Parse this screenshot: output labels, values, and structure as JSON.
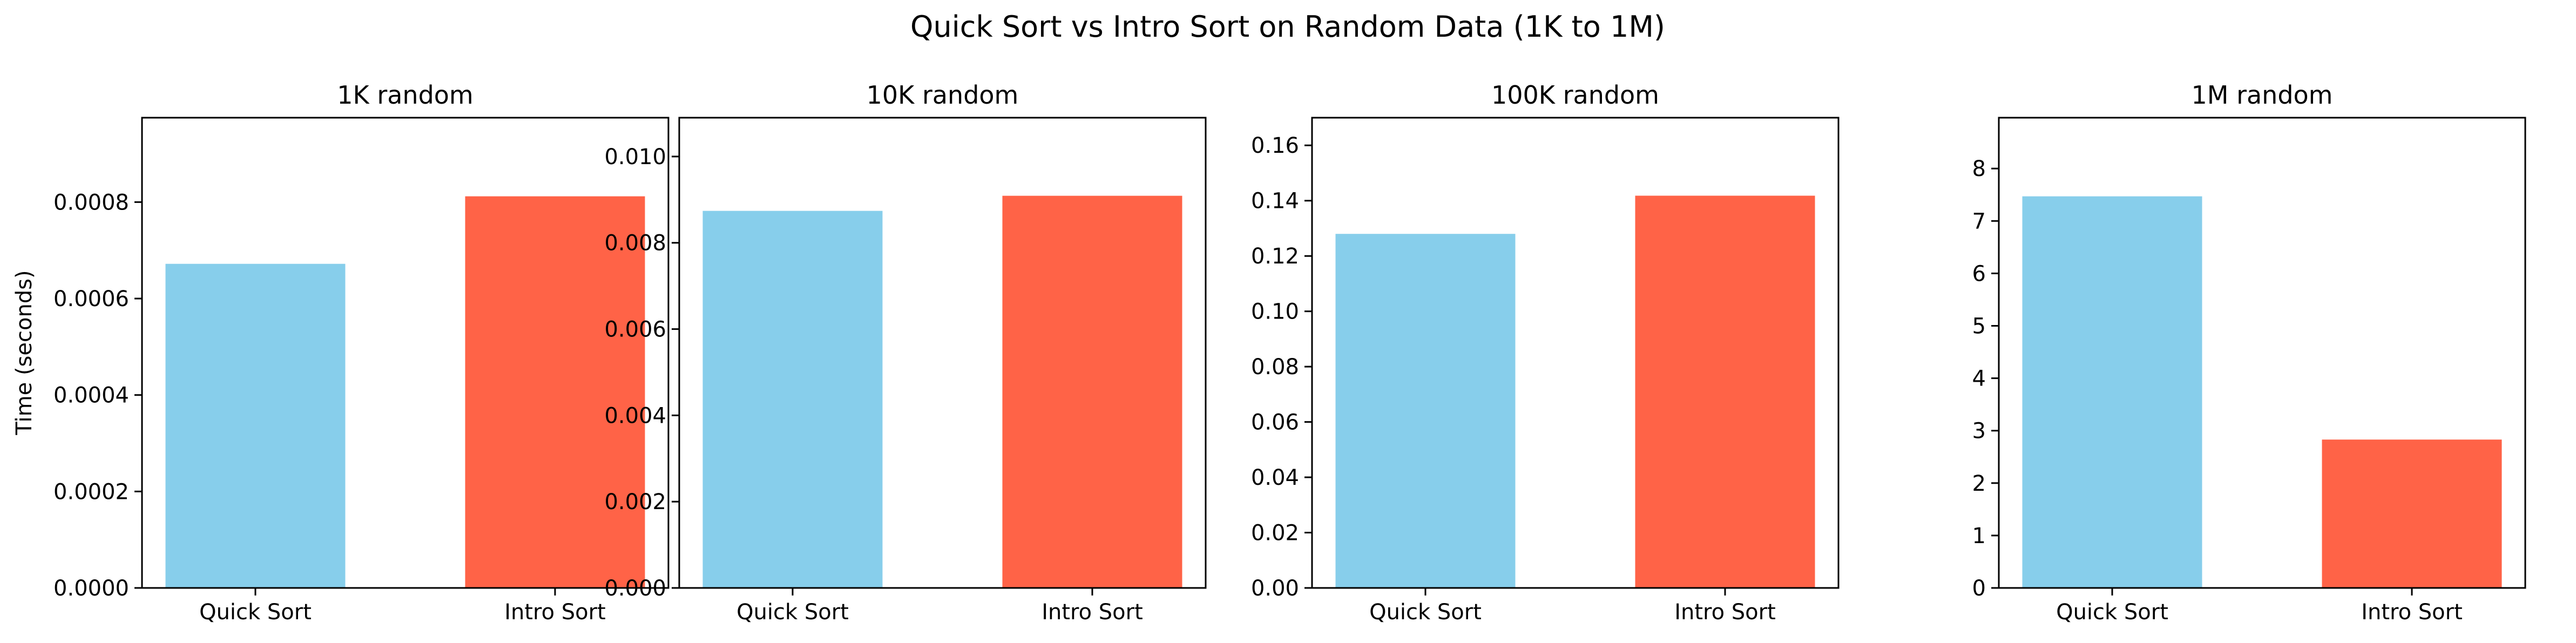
{
  "figure": {
    "suptitle": "Quick Sort vs Intro Sort on Random Data (1K to 1M)",
    "shared_ylabel": "Time (seconds)"
  },
  "colors": {
    "quick_sort": "#87CEEB",
    "intro_sort": "#FF6347"
  },
  "chart_data": [
    {
      "type": "bar",
      "title": "1K random",
      "categories": [
        "Quick Sort",
        "Intro Sort"
      ],
      "values": [
        0.000672,
        0.000812
      ],
      "ylabel": "Time (seconds)",
      "ylim": [
        0,
        0.000975
      ],
      "yticks": [
        0,
        0.0002,
        0.0004,
        0.0006,
        0.0008
      ],
      "ytick_labels": [
        "0.0000",
        "0.0002",
        "0.0004",
        "0.0006",
        "0.0008"
      ],
      "grid": false,
      "legend": "none"
    },
    {
      "type": "bar",
      "title": "10K random",
      "categories": [
        "Quick Sort",
        "Intro Sort"
      ],
      "values": [
        0.00874,
        0.00909
      ],
      "ylabel": "",
      "ylim": [
        0,
        0.0109
      ],
      "yticks": [
        0,
        0.002,
        0.004,
        0.006,
        0.008,
        0.01
      ],
      "ytick_labels": [
        "0.000",
        "0.002",
        "0.004",
        "0.006",
        "0.008",
        "0.010"
      ],
      "grid": false,
      "legend": "none"
    },
    {
      "type": "bar",
      "title": "100K random",
      "categories": [
        "Quick Sort",
        "Intro Sort"
      ],
      "values": [
        0.128,
        0.1418
      ],
      "ylabel": "",
      "ylim": [
        0,
        0.17
      ],
      "yticks": [
        0,
        0.02,
        0.04,
        0.06,
        0.08,
        0.1,
        0.12,
        0.14,
        0.16
      ],
      "ytick_labels": [
        "0.00",
        "0.02",
        "0.04",
        "0.06",
        "0.08",
        "0.10",
        "0.12",
        "0.14",
        "0.16"
      ],
      "grid": false,
      "legend": "none"
    },
    {
      "type": "bar",
      "title": "1M random",
      "categories": [
        "Quick Sort",
        "Intro Sort"
      ],
      "values": [
        7.47,
        2.83
      ],
      "ylabel": "",
      "ylim": [
        0,
        8.97
      ],
      "yticks": [
        0,
        1,
        2,
        3,
        4,
        5,
        6,
        7,
        8
      ],
      "ytick_labels": [
        "0",
        "1",
        "2",
        "3",
        "4",
        "5",
        "6",
        "7",
        "8"
      ],
      "grid": false,
      "legend": "none"
    }
  ]
}
